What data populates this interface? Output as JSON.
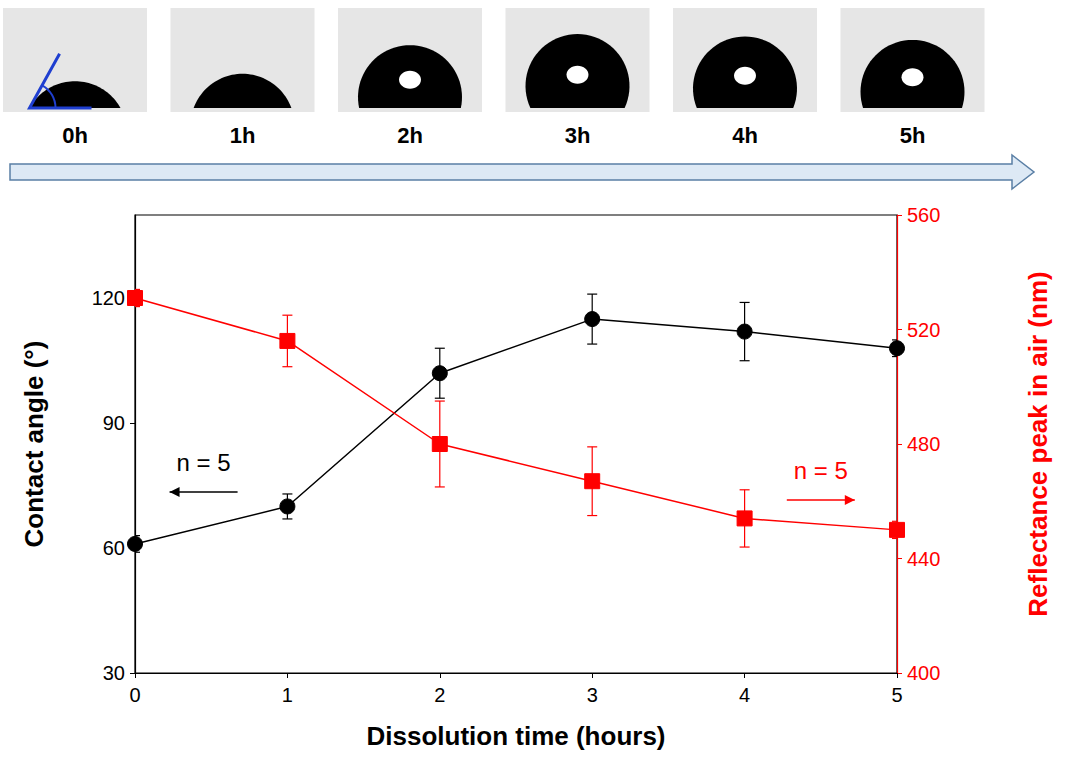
{
  "chart_data": {
    "type": "line",
    "image_labels": [
      "0h",
      "1h",
      "2h",
      "3h",
      "4h",
      "5h"
    ],
    "x_label": "Dissolution time (hours)",
    "x": [
      0,
      1,
      2,
      3,
      4,
      5
    ],
    "xlim": [
      0,
      5
    ],
    "xticks": [
      0,
      1,
      2,
      3,
      4,
      5
    ],
    "y_label": "Contact angle (°)",
    "ylim": [
      30,
      140
    ],
    "yticks": [
      30,
      60,
      90,
      120
    ],
    "y2_label": "Reflectance peak in air (nm)",
    "y2lim": [
      400,
      560
    ],
    "y2ticks": [
      400,
      440,
      480,
      520,
      560
    ],
    "grid": false,
    "series": [
      {
        "color": "#000000",
        "marker": "circle",
        "axis": "y",
        "values": [
          61,
          70,
          102,
          115,
          112,
          108
        ],
        "errors": [
          2,
          3,
          6,
          6,
          7,
          2
        ]
      },
      {
        "color": "#ff0000",
        "marker": "square",
        "axis": "y2",
        "values": [
          531,
          516,
          480,
          467,
          454,
          450
        ],
        "errors": [
          3,
          9,
          15,
          12,
          10,
          3
        ]
      }
    ],
    "annotations": [
      {
        "text": "n = 5",
        "axis": "y",
        "color": "#000000"
      },
      {
        "text": "n = 5",
        "axis": "y2",
        "color": "#ff0000"
      }
    ]
  }
}
